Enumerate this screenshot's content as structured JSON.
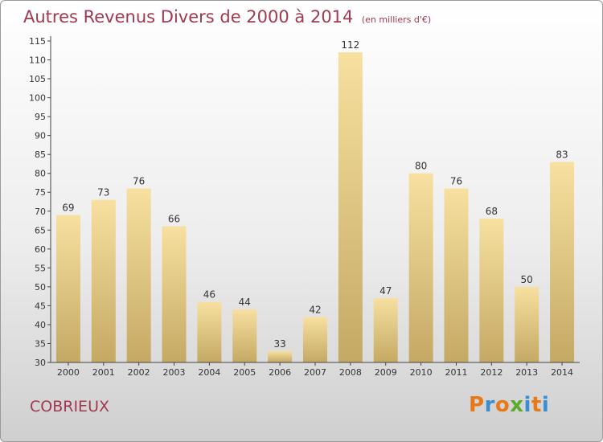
{
  "header": {
    "title": "Autres Revenus Divers de 2000 à 2014",
    "subtitle": "(en milliers d'€)"
  },
  "footer": {
    "commune": "COBRIEUX",
    "logo_text": "Proxiti"
  },
  "colors": {
    "title": "#a2394f",
    "bar_top": "#f7e0a0",
    "bar_bottom": "#c4a964",
    "logo_letters": [
      "#e8791b",
      "#3a8dd0",
      "#e8791b",
      "#5aab2e",
      "#3a8dd0",
      "#e8791b",
      "#3a8dd0"
    ]
  },
  "chart_data": {
    "type": "bar",
    "title": "Autres Revenus Divers de 2000 à 2014",
    "subtitle": "(en milliers d'€)",
    "categories": [
      "2000",
      "2001",
      "2002",
      "2003",
      "2004",
      "2005",
      "2006",
      "2007",
      "2008",
      "2009",
      "2010",
      "2011",
      "2012",
      "2013",
      "2014"
    ],
    "values": [
      69,
      73,
      76,
      66,
      46,
      44,
      33,
      42,
      112,
      47,
      80,
      76,
      68,
      50,
      83
    ],
    "ylim": [
      30,
      115
    ],
    "yticks": [
      30,
      35,
      40,
      45,
      50,
      55,
      60,
      65,
      70,
      75,
      80,
      85,
      90,
      95,
      100,
      105,
      110,
      115
    ],
    "grid": false,
    "legend": "none"
  }
}
